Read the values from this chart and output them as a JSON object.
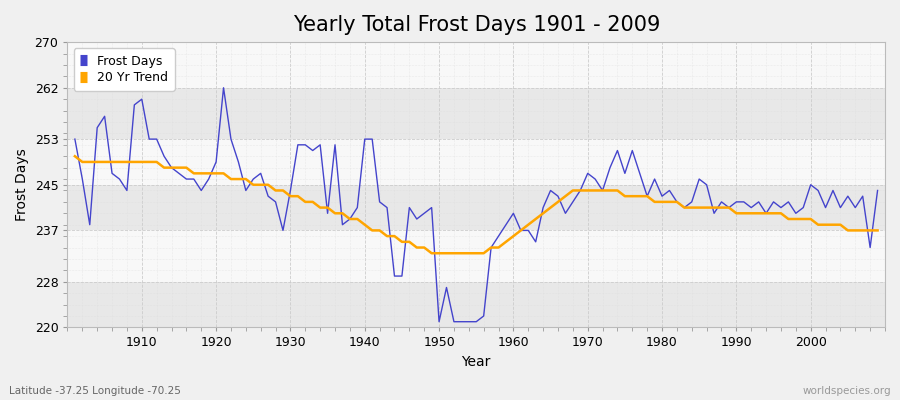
{
  "title": "Yearly Total Frost Days 1901 - 2009",
  "xlabel": "Year",
  "ylabel": "Frost Days",
  "subtitle": "Latitude -37.25 Longitude -70.25",
  "watermark": "worldspecies.org",
  "years": [
    1901,
    1902,
    1903,
    1904,
    1905,
    1906,
    1907,
    1908,
    1909,
    1910,
    1911,
    1912,
    1913,
    1914,
    1915,
    1916,
    1917,
    1918,
    1919,
    1920,
    1921,
    1922,
    1923,
    1924,
    1925,
    1926,
    1927,
    1928,
    1929,
    1930,
    1931,
    1932,
    1933,
    1934,
    1935,
    1936,
    1937,
    1938,
    1939,
    1940,
    1941,
    1942,
    1943,
    1944,
    1945,
    1946,
    1947,
    1948,
    1949,
    1950,
    1951,
    1952,
    1953,
    1954,
    1955,
    1956,
    1957,
    1958,
    1959,
    1960,
    1961,
    1962,
    1963,
    1964,
    1965,
    1966,
    1967,
    1968,
    1969,
    1970,
    1971,
    1972,
    1973,
    1974,
    1975,
    1976,
    1977,
    1978,
    1979,
    1980,
    1981,
    1982,
    1983,
    1984,
    1985,
    1986,
    1987,
    1988,
    1989,
    1990,
    1991,
    1992,
    1993,
    1994,
    1995,
    1996,
    1997,
    1998,
    1999,
    2000,
    2001,
    2002,
    2003,
    2004,
    2005,
    2006,
    2007,
    2008,
    2009
  ],
  "frost_days": [
    253,
    246,
    238,
    255,
    257,
    247,
    246,
    244,
    259,
    260,
    253,
    253,
    250,
    248,
    247,
    246,
    246,
    244,
    246,
    249,
    262,
    253,
    249,
    244,
    246,
    247,
    243,
    242,
    237,
    244,
    252,
    252,
    251,
    252,
    240,
    252,
    238,
    239,
    241,
    253,
    253,
    242,
    241,
    229,
    229,
    241,
    239,
    240,
    241,
    221,
    227,
    221,
    221,
    221,
    221,
    222,
    234,
    236,
    238,
    240,
    237,
    237,
    235,
    241,
    244,
    243,
    240,
    242,
    244,
    247,
    246,
    244,
    248,
    251,
    247,
    251,
    247,
    243,
    246,
    243,
    244,
    242,
    241,
    242,
    246,
    245,
    240,
    242,
    241,
    242,
    242,
    241,
    242,
    240,
    242,
    241,
    242,
    240,
    241,
    245,
    244,
    241,
    244,
    241,
    243,
    241,
    243,
    234,
    244
  ],
  "trend_values": [
    250,
    249,
    249,
    249,
    249,
    249,
    249,
    249,
    249,
    249,
    249,
    249,
    248,
    248,
    248,
    248,
    247,
    247,
    247,
    247,
    247,
    246,
    246,
    246,
    245,
    245,
    245,
    244,
    244,
    243,
    243,
    242,
    242,
    241,
    241,
    240,
    240,
    239,
    239,
    238,
    237,
    237,
    236,
    236,
    235,
    235,
    234,
    234,
    233,
    233,
    233,
    233,
    233,
    233,
    233,
    233,
    234,
    234,
    235,
    236,
    237,
    238,
    239,
    240,
    241,
    242,
    243,
    244,
    244,
    244,
    244,
    244,
    244,
    244,
    243,
    243,
    243,
    243,
    242,
    242,
    242,
    242,
    241,
    241,
    241,
    241,
    241,
    241,
    241,
    240,
    240,
    240,
    240,
    240,
    240,
    240,
    239,
    239,
    239,
    239,
    238,
    238,
    238,
    238,
    237,
    237,
    237,
    237,
    237
  ],
  "line_color": "#4444cc",
  "trend_color": "#FFA500",
  "bg_color": "#f0f0f0",
  "plot_bg_color": "#f8f8f8",
  "grid_color": "#cccccc",
  "band_color_dark": "#e8e8e8",
  "band_color_light": "#f8f8f8",
  "ylim": [
    220,
    270
  ],
  "yticks": [
    220,
    228,
    237,
    245,
    253,
    262,
    270
  ],
  "xticks": [
    1910,
    1920,
    1930,
    1940,
    1950,
    1960,
    1970,
    1980,
    1990,
    2000
  ],
  "title_fontsize": 15,
  "axis_fontsize": 9,
  "legend_fontsize": 9
}
